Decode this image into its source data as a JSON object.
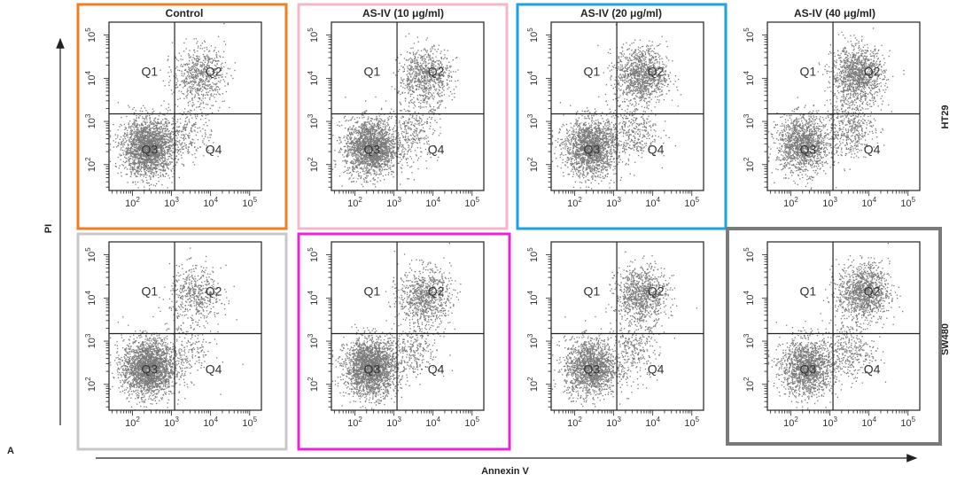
{
  "panel_label": "A",
  "x_axis_label": "Annexin V",
  "y_axis_label": "PI",
  "column_titles": [
    "Control",
    "AS-IV (10 μg/ml)",
    "AS-IV (20 μg/ml)",
    "AS-IV (40 μg/ml)"
  ],
  "row_labels": [
    "HT29",
    "SW480"
  ],
  "quadrant_labels": [
    "Q1",
    "Q2",
    "Q3",
    "Q4"
  ],
  "colors": {
    "dots": "#7a7a7a",
    "frame_control": "#f07d22",
    "frame_10_row1": "#f4b7c8",
    "frame_20_row1": "#1aa3e0",
    "frame_control_row2": "#c8c8c8",
    "frame_10_row2": "#ee22d6",
    "frame_40_row2": "#7a7a7a"
  },
  "chart_data": {
    "type": "scatter",
    "x_label": "Annexin V",
    "y_label": "PI",
    "x_scale": "log",
    "y_scale": "log",
    "x_ticks": [
      100,
      1000,
      10000,
      100000
    ],
    "y_ticks": [
      100,
      1000,
      10000,
      100000
    ],
    "gate_x": 1200,
    "gate_y": 1500,
    "panels": [
      {
        "column": "Control",
        "row": "HT29",
        "frame_color": "#f07d22",
        "clusters": [
          {
            "x": 250,
            "y": 250,
            "n": 2200
          },
          {
            "x": 5000,
            "y": 12000,
            "n": 650
          },
          {
            "x": 2500,
            "y": 600,
            "n": 250
          }
        ]
      },
      {
        "column": "AS-IV (10 μg/ml)",
        "row": "HT29",
        "frame_color": "#f4b7c8",
        "clusters": [
          {
            "x": 250,
            "y": 250,
            "n": 2000
          },
          {
            "x": 6000,
            "y": 11000,
            "n": 800
          },
          {
            "x": 3000,
            "y": 600,
            "n": 300
          }
        ]
      },
      {
        "column": "AS-IV (20 μg/ml)",
        "row": "HT29",
        "frame_color": "#1aa3e0",
        "clusters": [
          {
            "x": 250,
            "y": 250,
            "n": 1800
          },
          {
            "x": 5000,
            "y": 12000,
            "n": 1100
          },
          {
            "x": 3000,
            "y": 600,
            "n": 350
          }
        ]
      },
      {
        "column": "AS-IV (40 μg/ml)",
        "row": "HT29",
        "frame_color": "",
        "clusters": [
          {
            "x": 200,
            "y": 300,
            "n": 1400
          },
          {
            "x": 5000,
            "y": 12000,
            "n": 1200
          },
          {
            "x": 3000,
            "y": 700,
            "n": 450
          }
        ]
      },
      {
        "column": "Control",
        "row": "SW480",
        "frame_color": "#c8c8c8",
        "clusters": [
          {
            "x": 250,
            "y": 250,
            "n": 2300
          },
          {
            "x": 4000,
            "y": 12000,
            "n": 500
          },
          {
            "x": 2500,
            "y": 600,
            "n": 200
          }
        ]
      },
      {
        "column": "AS-IV (10 μg/ml)",
        "row": "SW480",
        "frame_color": "#ee22d6",
        "clusters": [
          {
            "x": 250,
            "y": 250,
            "n": 2300
          },
          {
            "x": 6000,
            "y": 11000,
            "n": 850
          },
          {
            "x": 3000,
            "y": 600,
            "n": 300
          }
        ]
      },
      {
        "column": "AS-IV (20 μg/ml)",
        "row": "SW480",
        "frame_color": "",
        "clusters": [
          {
            "x": 250,
            "y": 250,
            "n": 1600
          },
          {
            "x": 5000,
            "y": 12000,
            "n": 950
          },
          {
            "x": 3000,
            "y": 600,
            "n": 300
          }
        ]
      },
      {
        "column": "AS-IV (40 μg/ml)",
        "row": "SW480",
        "frame_color": "#7a7a7a",
        "clusters": [
          {
            "x": 250,
            "y": 250,
            "n": 1500
          },
          {
            "x": 7000,
            "y": 14000,
            "n": 1150
          },
          {
            "x": 3000,
            "y": 600,
            "n": 350
          }
        ]
      }
    ]
  }
}
